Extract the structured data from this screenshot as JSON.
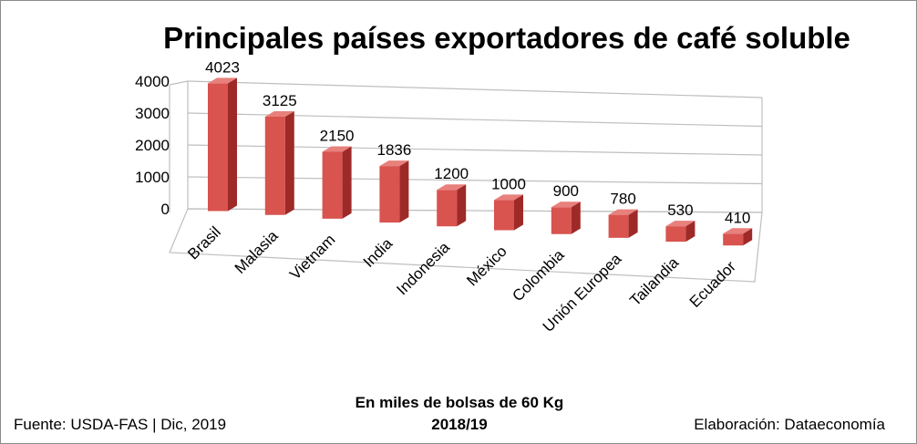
{
  "chart_data": {
    "type": "bar",
    "title": "Principales países exportadores de café soluble",
    "categories": [
      "Brasil",
      "Malasia",
      "Vietnam",
      "India",
      "Indonesia",
      "México",
      "Colombia",
      "Unión Europea",
      "Tailandia",
      "Ecuador"
    ],
    "values": [
      4023,
      3125,
      2150,
      1836,
      1200,
      1000,
      900,
      780,
      530,
      410
    ],
    "data_labels": [
      "4023",
      "3125",
      "2150",
      "1836",
      "1200",
      "1000",
      "900",
      "780",
      "530",
      "410"
    ],
    "y_ticks": [
      "0",
      "1000",
      "2000",
      "3000",
      "4000"
    ],
    "ylim": [
      0,
      4000
    ],
    "grid": true,
    "legend": "none",
    "bar_color": "#d9534f",
    "bar_side_color": "#9e2a28",
    "bar_top_color": "#e8807c"
  },
  "footer": {
    "source": "Fuente:  USDA-FAS | Dic, 2019",
    "units": "En miles de bolsas de 60 Kg",
    "period": "2018/19",
    "credit": "Elaboración: Dataeconomía"
  }
}
